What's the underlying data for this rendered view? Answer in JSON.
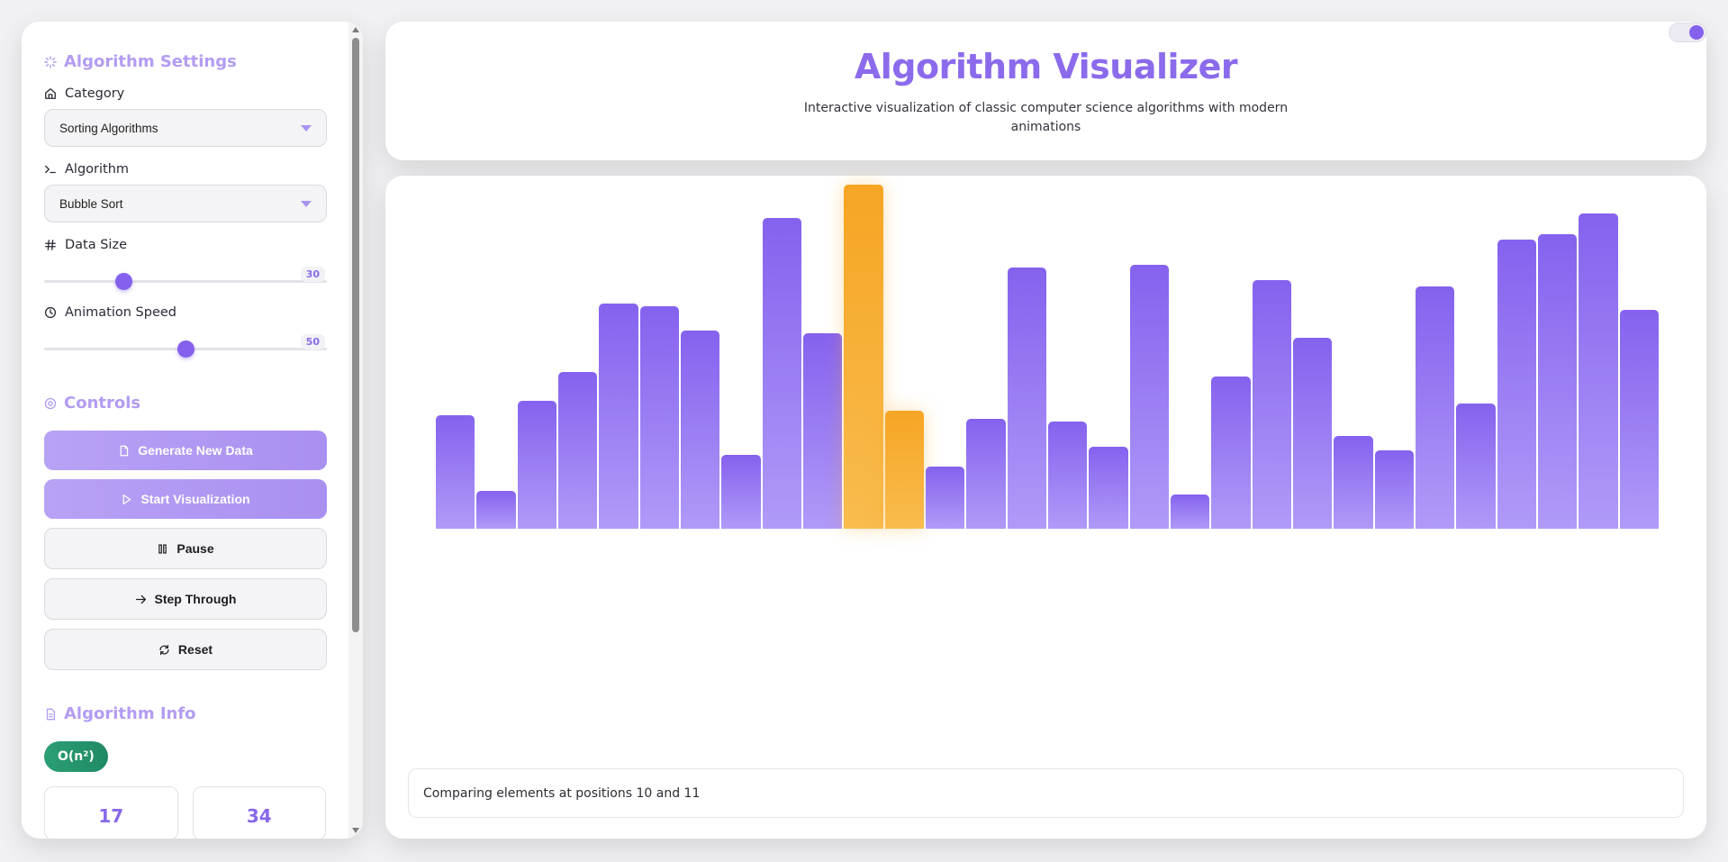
{
  "settings": {
    "title": "Algorithm Settings",
    "category_label": "Category",
    "category_value": "Sorting Algorithms",
    "algorithm_label": "Algorithm",
    "algorithm_value": "Bubble Sort",
    "data_size_label": "Data Size",
    "data_size_value": "30",
    "data_size_fraction": 0.28,
    "speed_label": "Animation Speed",
    "speed_value": "50",
    "speed_fraction": 0.5
  },
  "controls": {
    "title": "Controls",
    "generate_label": "Generate New Data",
    "start_label": "Start Visualization",
    "pause_label": "Pause",
    "step_label": "Step Through",
    "reset_label": "Reset"
  },
  "info": {
    "title": "Algorithm Info",
    "complexity": "O(n²)",
    "stat1": "17",
    "stat2": "34"
  },
  "header": {
    "title": "Algorithm Visualizer",
    "subtitle": "Interactive visualization of classic computer science algorithms with modern animations"
  },
  "status": {
    "message": "Comparing elements at positions 10 and 11"
  },
  "colors": {
    "accent": "#8460ec",
    "bar_default": "#9a7df4",
    "bar_compare": "#f7aa2c",
    "badge": "#2c9f74"
  },
  "chart_data": {
    "type": "bar",
    "values": [
      126,
      42,
      142,
      174,
      250,
      247,
      220,
      82,
      345,
      217,
      382,
      131,
      69,
      122,
      290,
      119,
      91,
      293,
      38,
      169,
      276,
      212,
      103,
      87,
      269,
      139,
      321,
      327,
      350,
      243
    ],
    "highlighted_indices": [
      10,
      11
    ],
    "max": 382
  }
}
